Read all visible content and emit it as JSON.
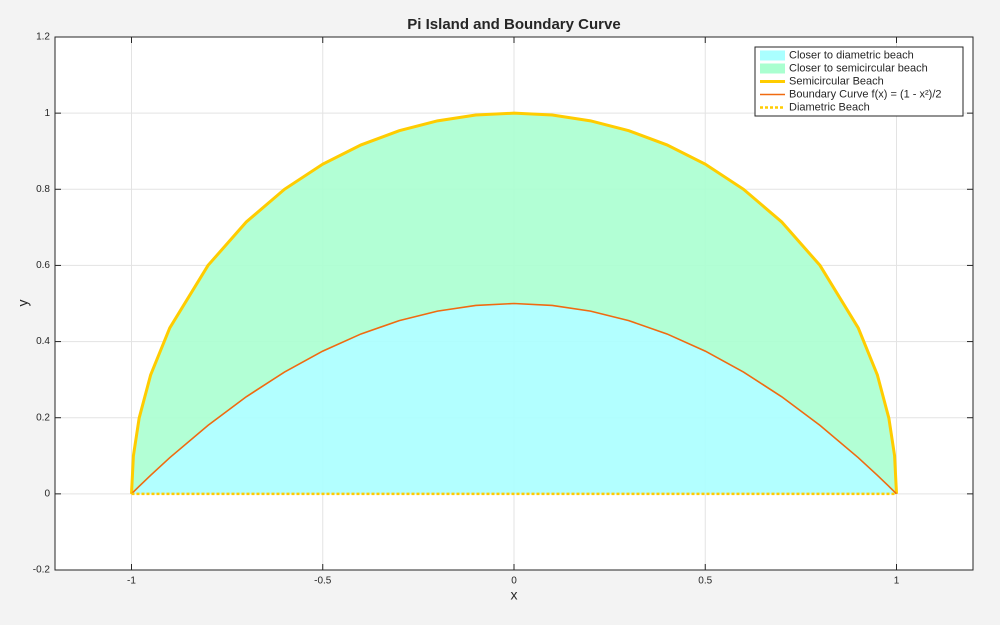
{
  "chart_data": {
    "type": "area-line",
    "title": "Pi Island and Boundary Curve",
    "xlabel": "x",
    "ylabel": "y",
    "x": [
      -1,
      -0.995,
      -0.98,
      -0.95,
      -0.9,
      -0.8,
      -0.7,
      -0.6,
      -0.5,
      -0.4,
      -0.3,
      -0.2,
      -0.1,
      0,
      0.1,
      0.2,
      0.3,
      0.4,
      0.5,
      0.6,
      0.7,
      0.8,
      0.9,
      0.95,
      0.98,
      0.995,
      1
    ],
    "series": [
      {
        "name": "Closer to diametric beach",
        "kind": "fill",
        "color": "#aaffff",
        "values": [
          0,
          0.004988,
          0.0198,
          0.04875,
          0.095,
          0.18,
          0.255,
          0.32,
          0.375,
          0.42,
          0.455,
          0.48,
          0.495,
          0.5,
          0.495,
          0.48,
          0.455,
          0.42,
          0.375,
          0.32,
          0.255,
          0.18,
          0.095,
          0.04875,
          0.0198,
          0.004988,
          0
        ],
        "lower": [
          0,
          0,
          0,
          0,
          0,
          0,
          0,
          0,
          0,
          0,
          0,
          0,
          0,
          0,
          0,
          0,
          0,
          0,
          0,
          0,
          0,
          0,
          0,
          0,
          0,
          0,
          0
        ]
      },
      {
        "name": "Closer to semicircular beach",
        "kind": "fill",
        "color": "#aaffd0",
        "values": [
          0,
          0.09987,
          0.199,
          0.31225,
          0.43589,
          0.6,
          0.71414,
          0.8,
          0.86603,
          0.91652,
          0.95394,
          0.9798,
          0.99499,
          1,
          0.99499,
          0.9798,
          0.95394,
          0.91652,
          0.86603,
          0.8,
          0.71414,
          0.6,
          0.43589,
          0.31225,
          0.199,
          0.09987,
          0
        ],
        "lower": [
          0,
          0.004988,
          0.0198,
          0.04875,
          0.095,
          0.18,
          0.255,
          0.32,
          0.375,
          0.42,
          0.455,
          0.48,
          0.495,
          0.5,
          0.495,
          0.48,
          0.455,
          0.42,
          0.375,
          0.32,
          0.255,
          0.18,
          0.095,
          0.04875,
          0.0198,
          0.004988,
          0
        ]
      },
      {
        "name": "Semicircular Beach",
        "kind": "line",
        "color": "#ffcc00",
        "width": 3,
        "dash": "none",
        "values": [
          0,
          0.09987,
          0.199,
          0.31225,
          0.43589,
          0.6,
          0.71414,
          0.8,
          0.86603,
          0.91652,
          0.95394,
          0.9798,
          0.99499,
          1,
          0.99499,
          0.9798,
          0.95394,
          0.91652,
          0.86603,
          0.8,
          0.71414,
          0.6,
          0.43589,
          0.31225,
          0.199,
          0.09987,
          0
        ]
      },
      {
        "name": "Boundary  Curve  f(x)  =  (1 - x²)/2",
        "kind": "line",
        "color": "#f06a10",
        "width": 1.6,
        "dash": "none",
        "values": [
          0,
          0.004988,
          0.0198,
          0.04875,
          0.095,
          0.18,
          0.255,
          0.32,
          0.375,
          0.42,
          0.455,
          0.48,
          0.495,
          0.5,
          0.495,
          0.48,
          0.455,
          0.42,
          0.375,
          0.32,
          0.255,
          0.18,
          0.095,
          0.04875,
          0.0198,
          0.004988,
          0
        ]
      },
      {
        "name": "Diametric Beach",
        "kind": "line",
        "color": "#ffcc00",
        "width": 2.5,
        "dash": "3 2",
        "values": [
          0,
          0,
          0,
          0,
          0,
          0,
          0,
          0,
          0,
          0,
          0,
          0,
          0,
          0,
          0,
          0,
          0,
          0,
          0,
          0,
          0,
          0,
          0,
          0,
          0,
          0,
          0
        ]
      }
    ],
    "xlim": [
      -1.2,
      1.2
    ],
    "xticks": [
      -1,
      -0.5,
      0,
      0.5,
      1
    ],
    "ylim": [
      -0.2,
      1.2
    ],
    "yticks": [
      -0.2,
      0,
      0.2,
      0.4,
      0.6,
      0.8,
      1,
      1.2
    ],
    "grid": true,
    "legend": "northeast"
  }
}
